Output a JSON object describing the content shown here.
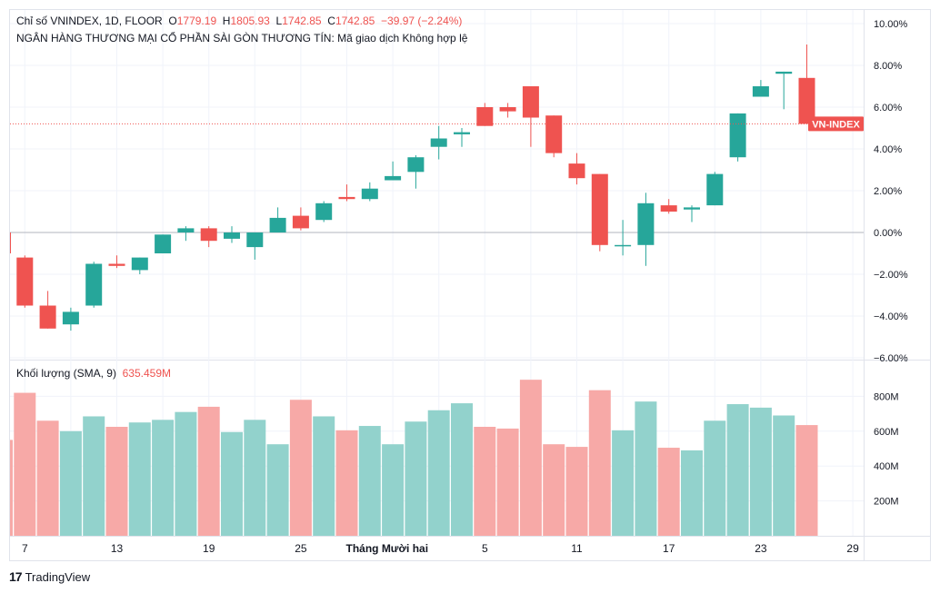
{
  "legend": {
    "title": "Chỉ số VNINDEX, 1D, FLOOR",
    "open_label": "O",
    "open": "1779.19",
    "high_label": "H",
    "high": "1805.93",
    "low_label": "L",
    "low": "1742.85",
    "close_label": "C",
    "close": "1742.85",
    "change": "−39.97 (−2.24%)",
    "subtitle": "NGÂN HÀNG THƯƠNG MẠI CỔ PHẦN SÀI GÒN THƯƠNG TÍN: Mã giao dịch Không hợp lệ"
  },
  "volume_legend": {
    "label": "Khối lượng (SMA, 9)",
    "value": "635.459M"
  },
  "price_tag": "VN-INDEX",
  "brand": {
    "logo": "17",
    "name": "TradingView"
  },
  "colors": {
    "up": "#26a69a",
    "down": "#ef5350",
    "vol_up": "#92d2cc",
    "vol_down": "#f7a9a7"
  },
  "chart_data": {
    "type": "candlestick",
    "price_axis": {
      "unit": "%",
      "ticks": [
        "10.00%",
        "8.00%",
        "6.00%",
        "4.00%",
        "2.00%",
        "0.00%",
        "−2.00%",
        "−4.00%",
        "−6.00%"
      ],
      "range": [
        -6,
        10
      ],
      "last_value": 5.2
    },
    "volume_axis": {
      "ticks": [
        "800M",
        "600M",
        "400M",
        "200M"
      ],
      "range": [
        0,
        1000
      ]
    },
    "x_labels": [
      {
        "index": 0,
        "label": "7"
      },
      {
        "index": 4,
        "label": "13"
      },
      {
        "index": 8,
        "label": "19"
      },
      {
        "index": 12,
        "label": "25"
      },
      {
        "index": 15.75,
        "label": "Tháng Mười hai"
      },
      {
        "index": 20,
        "label": "5"
      },
      {
        "index": 24,
        "label": "11"
      },
      {
        "index": 28,
        "label": "17"
      },
      {
        "index": 32,
        "label": "23"
      },
      {
        "index": 36,
        "label": "29"
      }
    ],
    "candles": [
      {
        "o": -1.2,
        "h": -1.1,
        "l": -3.6,
        "c": -3.5,
        "v": 820
      },
      {
        "o": -3.5,
        "h": -2.8,
        "l": -4.6,
        "c": -4.6,
        "v": 660
      },
      {
        "o": -4.4,
        "h": -3.6,
        "l": -4.7,
        "c": -3.8,
        "v": 600
      },
      {
        "o": -3.5,
        "h": -1.4,
        "l": -3.6,
        "c": -1.5,
        "v": 685
      },
      {
        "o": -1.5,
        "h": -1.1,
        "l": -1.7,
        "c": -1.6,
        "v": 625
      },
      {
        "o": -1.8,
        "h": -1.2,
        "l": -2.0,
        "c": -1.2,
        "v": 650
      },
      {
        "o": -1.0,
        "h": -0.1,
        "l": -1.0,
        "c": -0.1,
        "v": 665
      },
      {
        "o": 0.0,
        "h": 0.3,
        "l": -0.4,
        "c": 0.2,
        "v": 710
      },
      {
        "o": 0.2,
        "h": 0.3,
        "l": -0.7,
        "c": -0.4,
        "v": 740
      },
      {
        "o": -0.3,
        "h": 0.3,
        "l": -0.5,
        "c": 0.0,
        "v": 595
      },
      {
        "o": -0.7,
        "h": 0.0,
        "l": -1.3,
        "c": 0.0,
        "v": 665
      },
      {
        "o": 0.0,
        "h": 1.2,
        "l": 0.0,
        "c": 0.7,
        "v": 525
      },
      {
        "o": 0.8,
        "h": 1.2,
        "l": 0.1,
        "c": 0.2,
        "v": 780
      },
      {
        "o": 0.6,
        "h": 1.5,
        "l": 0.5,
        "c": 1.4,
        "v": 685
      },
      {
        "o": 1.7,
        "h": 2.3,
        "l": 1.5,
        "c": 1.6,
        "v": 605
      },
      {
        "o": 1.6,
        "h": 2.4,
        "l": 1.5,
        "c": 2.1,
        "v": 630
      },
      {
        "o": 2.5,
        "h": 3.4,
        "l": 2.5,
        "c": 2.7,
        "v": 525
      },
      {
        "o": 2.9,
        "h": 3.7,
        "l": 2.1,
        "c": 3.6,
        "v": 655
      },
      {
        "o": 4.1,
        "h": 5.1,
        "l": 3.5,
        "c": 4.5,
        "v": 720
      },
      {
        "o": 4.7,
        "h": 5.0,
        "l": 4.1,
        "c": 4.8,
        "v": 760
      },
      {
        "o": 6.0,
        "h": 6.2,
        "l": 5.1,
        "c": 5.1,
        "v": 625
      },
      {
        "o": 6.0,
        "h": 6.2,
        "l": 5.5,
        "c": 5.8,
        "v": 615
      },
      {
        "o": 7.0,
        "h": 7.0,
        "l": 4.1,
        "c": 5.5,
        "v": 895
      },
      {
        "o": 5.6,
        "h": 5.6,
        "l": 3.6,
        "c": 3.8,
        "v": 525
      },
      {
        "o": 3.3,
        "h": 3.8,
        "l": 2.3,
        "c": 2.6,
        "v": 510
      },
      {
        "o": 2.8,
        "h": 2.8,
        "l": -0.9,
        "c": -0.6,
        "v": 835
      },
      {
        "o": -0.6,
        "h": 0.6,
        "l": -1.1,
        "c": -0.6,
        "v": 605
      },
      {
        "o": -0.6,
        "h": 1.9,
        "l": -1.6,
        "c": 1.4,
        "v": 770
      },
      {
        "o": 1.3,
        "h": 1.6,
        "l": 0.9,
        "c": 1.0,
        "v": 505
      },
      {
        "o": 1.1,
        "h": 1.3,
        "l": 0.5,
        "c": 1.2,
        "v": 490
      },
      {
        "o": 1.3,
        "h": 2.9,
        "l": 1.3,
        "c": 2.8,
        "v": 660
      },
      {
        "o": 3.6,
        "h": 5.7,
        "l": 3.4,
        "c": 5.7,
        "v": 755
      },
      {
        "o": 6.5,
        "h": 7.3,
        "l": 6.5,
        "c": 7.0,
        "v": 735
      },
      {
        "o": 7.6,
        "h": 7.7,
        "l": 5.9,
        "c": 7.7,
        "v": 690
      },
      {
        "o": 7.4,
        "h": 9.0,
        "l": 5.2,
        "c": 5.2,
        "v": 635
      }
    ]
  }
}
